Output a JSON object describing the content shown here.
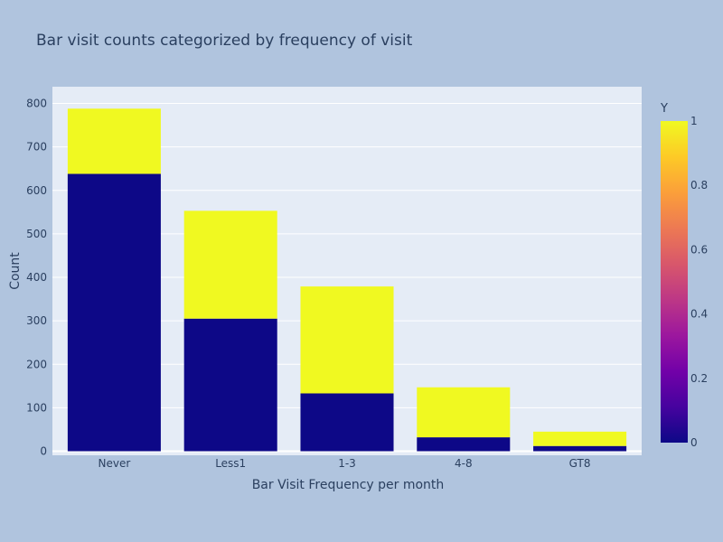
{
  "chart_data": {
    "type": "bar",
    "barmode": "stack",
    "title": "Bar visit counts categorized by frequency of visit",
    "xlabel": "Bar Visit Frequency per month",
    "ylabel": "Count",
    "categories": [
      "Never",
      "Less1",
      "1-3",
      "4-8",
      "GT8"
    ],
    "series": [
      {
        "y_value": 0,
        "values": [
          638,
          305,
          133,
          32,
          12
        ],
        "color": "#0d0887"
      },
      {
        "y_value": 1,
        "values": [
          150,
          248,
          246,
          115,
          33
        ],
        "color": "#f0f921"
      }
    ],
    "ylim": [
      0,
      840
    ],
    "yticks": [
      0,
      100,
      200,
      300,
      400,
      500,
      600,
      700,
      800
    ],
    "grid": true,
    "colorbar": {
      "title": "Y",
      "range": [
        0,
        1
      ],
      "ticks": [
        "0",
        "0.2",
        "0.4",
        "0.6",
        "0.8",
        "1"
      ],
      "colorscale": [
        "#0d0887",
        "#46039f",
        "#7201a8",
        "#9c179e",
        "#bd3786",
        "#d8576b",
        "#ed7953",
        "#fb9f3a",
        "#fdca26",
        "#f0f921"
      ]
    },
    "colors": {
      "paper": "#b0c4de",
      "plot": "#e5ecf6",
      "grid": "#ffffff",
      "text": "#2a3f5f"
    }
  }
}
